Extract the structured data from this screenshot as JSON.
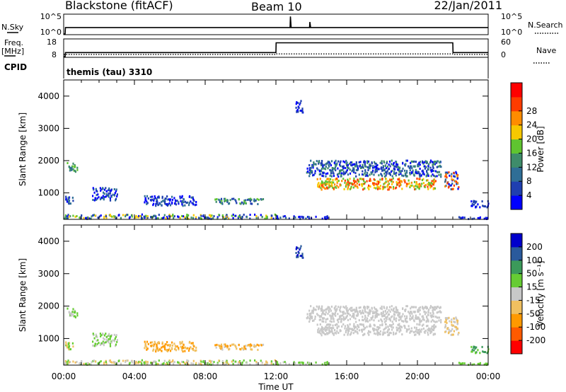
{
  "header": {
    "station": "Blackstone (fitACF)",
    "beam": "Beam 10",
    "date": "22/Jan/2011",
    "cpid_label": "CPID",
    "cpid_value": "themis (tau) 3310"
  },
  "side_labels": {
    "nsky": "N.Sky",
    "freq": "Freq.",
    "mhz": "[MHz]",
    "nsearch": "N.Search",
    "nave": "Nave"
  },
  "colors": {
    "power": [
      "#0000ff",
      "#1f3fb0",
      "#2f6e96",
      "#3e8c6a",
      "#5fc430",
      "#f7c800",
      "#ff8c00",
      "#ff3c00",
      "#ff0000"
    ],
    "velocity": [
      "#ff0000",
      "#ff5a00",
      "#ff9900",
      "#f0c060",
      "#c8c8c8",
      "#66cc33",
      "#3b9a5a",
      "#2a5a9c",
      "#0000cc"
    ]
  },
  "chart_data": [
    {
      "type": "line",
      "panel": "noise",
      "left_ticks": [
        "10^5",
        "10^0"
      ],
      "right_ticks": [
        "10^5",
        "10^0"
      ],
      "x_hours": [
        0,
        0.08,
        0.1,
        2,
        4,
        8,
        12,
        12.8,
        12.82,
        12.86,
        13.9,
        13.92,
        13.96,
        16,
        20,
        24
      ],
      "sky": [
        0,
        0,
        0.35,
        0.35,
        0.35,
        0.35,
        0.35,
        0.35,
        0.95,
        0.35,
        0.35,
        0.65,
        0.35,
        0.35,
        0.35,
        0.35
      ]
    },
    {
      "type": "line",
      "panel": "frequency",
      "left_ticks": [
        "18",
        "8"
      ],
      "right_ticks": [
        "60",
        "0"
      ],
      "freq_x_hours": [
        0,
        0.08,
        0.1,
        12,
        12.01,
        22,
        22.01,
        24
      ],
      "freq_mhz": [
        8,
        8,
        10.5,
        10.5,
        16.5,
        16.5,
        10.5,
        10.5
      ],
      "nave_x_hours": [
        0,
        12,
        12.01,
        22,
        22.01,
        24
      ],
      "nave": [
        8,
        8,
        10,
        10,
        8,
        8
      ]
    },
    {
      "type": "heatmap",
      "panel": "power",
      "title": "",
      "xlabel": "",
      "ylabel": "Slant Range [km]",
      "x_ticks": [
        "00:00",
        "04:00",
        "08:00",
        "12:00",
        "16:00",
        "20:00",
        "00:00"
      ],
      "y_ticks": [
        1000,
        2000,
        3000,
        4000
      ],
      "xlim_hours": [
        0,
        24
      ],
      "ylim_km": [
        180,
        4500
      ],
      "colorbar_label": "Power [dB]",
      "colorbar_ticks": [
        4,
        8,
        12,
        16,
        20,
        24,
        28
      ]
    },
    {
      "type": "heatmap",
      "panel": "velocity",
      "title": "",
      "xlabel": "Time UT",
      "ylabel": "Slant Range [km]",
      "x_ticks": [
        "00:00",
        "04:00",
        "08:00",
        "12:00",
        "16:00",
        "20:00",
        "00:00"
      ],
      "y_ticks": [
        1000,
        2000,
        3000,
        4000
      ],
      "xlim_hours": [
        0,
        24
      ],
      "ylim_km": [
        180,
        4500
      ],
      "colorbar_label": "Velocity [m s⁻¹]",
      "colorbar_ticks": [
        200,
        100,
        50,
        15,
        -15,
        -50,
        -100,
        -200
      ]
    }
  ],
  "echo_regions": [
    {
      "h0": 0.15,
      "h1": 0.75,
      "r0": 1650,
      "r1": 1950,
      "p": [
        2,
        3,
        4
      ],
      "v": [
        4,
        5
      ]
    },
    {
      "h0": 0.05,
      "h1": 0.55,
      "r0": 650,
      "r1": 900,
      "p": [
        0,
        1,
        2
      ],
      "v": [
        3,
        5
      ]
    },
    {
      "h0": 1.6,
      "h1": 3.0,
      "r0": 750,
      "r1": 1150,
      "p": [
        0,
        1,
        2
      ],
      "v": [
        5,
        4
      ]
    },
    {
      "h0": 4.5,
      "h1": 7.5,
      "r0": 600,
      "r1": 900,
      "p": [
        0,
        1,
        2
      ],
      "v": [
        3,
        2
      ]
    },
    {
      "h0": 8.5,
      "h1": 11.3,
      "r0": 650,
      "r1": 820,
      "p": [
        1,
        2,
        3,
        4
      ],
      "v": [
        3,
        4,
        2
      ]
    },
    {
      "h0": 0.0,
      "h1": 12.0,
      "r0": 190,
      "r1": 330,
      "p": [
        0,
        1,
        3,
        4,
        5
      ],
      "v": [
        5,
        4,
        3
      ]
    },
    {
      "h0": 12.0,
      "h1": 15.0,
      "r0": 190,
      "r1": 280,
      "p": [
        0,
        1,
        2
      ],
      "v": [
        5,
        4
      ]
    },
    {
      "h0": 13.1,
      "h1": 13.5,
      "r0": 3450,
      "r1": 3850,
      "p": [
        0,
        1
      ],
      "v": [
        8,
        7
      ]
    },
    {
      "h0": 13.7,
      "h1": 21.3,
      "r0": 1500,
      "r1": 2000,
      "p": [
        0,
        1,
        2,
        3
      ],
      "v": [
        4
      ]
    },
    {
      "h0": 14.3,
      "h1": 21.0,
      "r0": 1100,
      "r1": 1450,
      "p": [
        4,
        5,
        6,
        7
      ],
      "v": [
        4
      ]
    },
    {
      "h0": 21.5,
      "h1": 22.3,
      "r0": 1100,
      "r1": 1650,
      "p": [
        0,
        2,
        6,
        7
      ],
      "v": [
        4,
        3
      ]
    },
    {
      "h0": 23.0,
      "h1": 24.0,
      "r0": 550,
      "r1": 750,
      "p": [
        0,
        1
      ],
      "v": [
        5,
        6
      ]
    },
    {
      "h0": 22.0,
      "h1": 24.0,
      "r0": 190,
      "r1": 260,
      "p": [
        0,
        1
      ],
      "v": [
        5
      ]
    }
  ]
}
